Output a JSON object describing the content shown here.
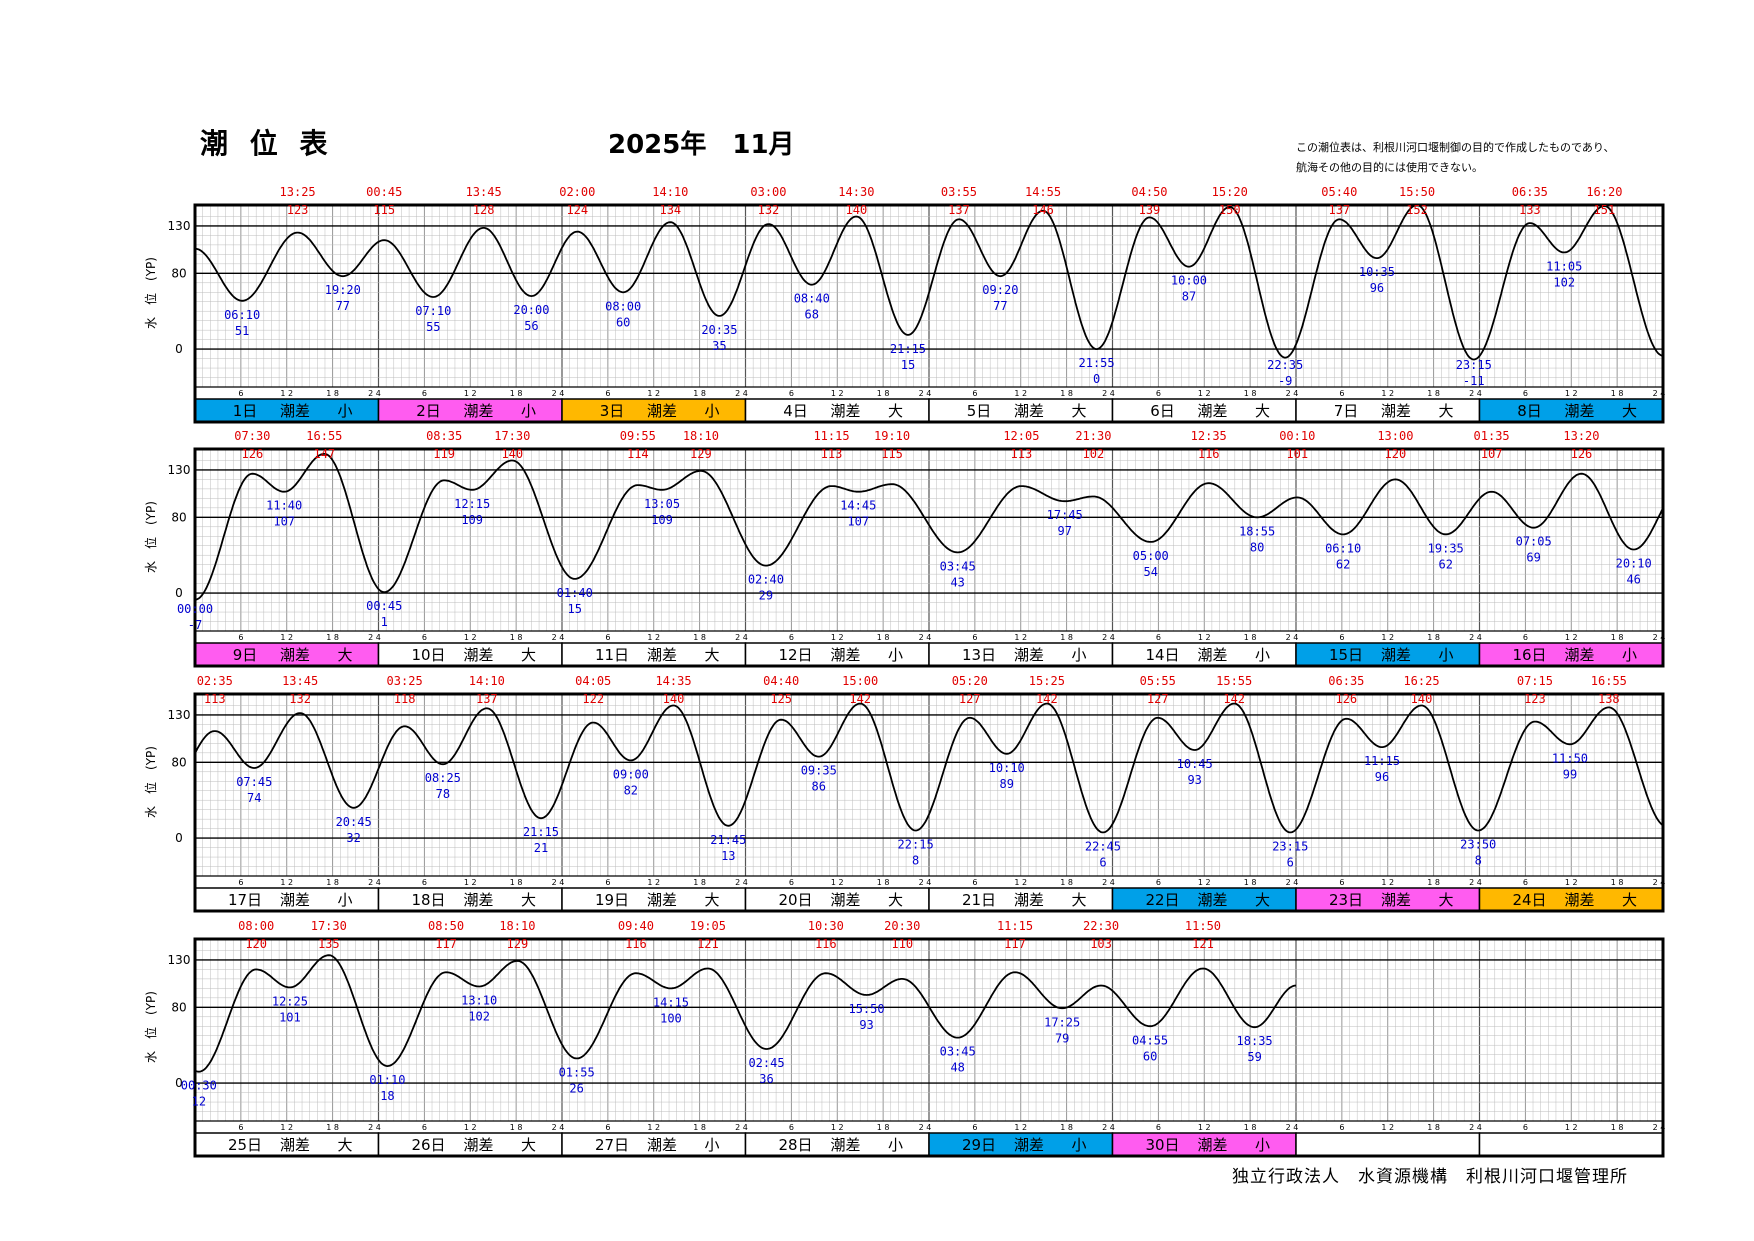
{
  "header": {
    "title": "潮 位 表",
    "month": "2025年　11月",
    "note_line1": "この潮位表は、利根川河口堰制御の目的で作成したものであり、",
    "note_line2": "航海その他の目的には使用できない。"
  },
  "footer": {
    "organization": "独立行政法人　水資源機構　利根川河口堰管理所"
  },
  "chart_data": {
    "type": "line",
    "title": "潮 位 表",
    "ylabel": "水　位　(YP)",
    "ylim": [
      -40,
      150
    ],
    "yticks": [
      0,
      80,
      130
    ],
    "hour_ticks": [
      6,
      12,
      18,
      24
    ],
    "colors": {
      "blue": "#00a0e8",
      "pink": "#ff5cf0",
      "orange": "#ffb800",
      "white": "#ffffff",
      "high": "#e00000",
      "low": "#0000d0"
    },
    "start_level": 106,
    "days": [
      {
        "label": "1日",
        "range": "潮差",
        "size": "小",
        "color": "blue",
        "events": [
          [
            "L",
            "06:10",
            51
          ],
          [
            "H",
            "13:25",
            123
          ],
          [
            "L",
            "19:20",
            77
          ]
        ]
      },
      {
        "label": "2日",
        "range": "潮差",
        "size": "小",
        "color": "pink",
        "events": [
          [
            "H",
            "00:45",
            115
          ],
          [
            "L",
            "07:10",
            55
          ],
          [
            "H",
            "13:45",
            128
          ],
          [
            "L",
            "20:00",
            56
          ]
        ]
      },
      {
        "label": "3日",
        "range": "潮差",
        "size": "小",
        "color": "orange",
        "events": [
          [
            "H",
            "02:00",
            124
          ],
          [
            "L",
            "08:00",
            60
          ],
          [
            "H",
            "14:10",
            134
          ],
          [
            "L",
            "20:35",
            35
          ]
        ]
      },
      {
        "label": "4日",
        "range": "潮差",
        "size": "大",
        "color": "white",
        "events": [
          [
            "H",
            "03:00",
            132
          ],
          [
            "L",
            "08:40",
            68
          ],
          [
            "H",
            "14:30",
            140
          ],
          [
            "L",
            "21:15",
            15
          ]
        ]
      },
      {
        "label": "5日",
        "range": "潮差",
        "size": "大",
        "color": "white",
        "events": [
          [
            "H",
            "03:55",
            137
          ],
          [
            "L",
            "09:20",
            77
          ],
          [
            "H",
            "14:55",
            146
          ],
          [
            "L",
            "21:55",
            0
          ]
        ]
      },
      {
        "label": "6日",
        "range": "潮差",
        "size": "大",
        "color": "white",
        "events": [
          [
            "H",
            "04:50",
            139
          ],
          [
            "L",
            "10:00",
            87
          ],
          [
            "H",
            "15:20",
            150
          ],
          [
            "L",
            "22:35",
            -9
          ]
        ]
      },
      {
        "label": "7日",
        "range": "潮差",
        "size": "大",
        "color": "white",
        "events": [
          [
            "H",
            "05:40",
            137
          ],
          [
            "L",
            "10:35",
            96
          ],
          [
            "H",
            "15:50",
            152
          ],
          [
            "L",
            "23:15",
            -11
          ]
        ]
      },
      {
        "label": "8日",
        "range": "潮差",
        "size": "大",
        "color": "blue",
        "events": [
          [
            "H",
            "06:35",
            133
          ],
          [
            "L",
            "11:05",
            102
          ],
          [
            "H",
            "16:20",
            151
          ]
        ]
      },
      {
        "label": "9日",
        "range": "潮差",
        "size": "大",
        "color": "pink",
        "events": [
          [
            "L",
            "00:00",
            -7
          ],
          [
            "H",
            "07:30",
            126
          ],
          [
            "L",
            "11:40",
            107
          ],
          [
            "H",
            "16:55",
            147
          ]
        ]
      },
      {
        "label": "10日",
        "range": "潮差",
        "size": "大",
        "color": "white",
        "events": [
          [
            "L",
            "00:45",
            1
          ],
          [
            "H",
            "08:35",
            119
          ],
          [
            "L",
            "12:15",
            109
          ],
          [
            "H",
            "17:30",
            140
          ]
        ]
      },
      {
        "label": "11日",
        "range": "潮差",
        "size": "大",
        "color": "white",
        "events": [
          [
            "L",
            "01:40",
            15
          ],
          [
            "H",
            "09:55",
            114
          ],
          [
            "L",
            "13:05",
            109
          ],
          [
            "H",
            "18:10",
            129
          ]
        ]
      },
      {
        "label": "12日",
        "range": "潮差",
        "size": "小",
        "color": "white",
        "events": [
          [
            "L",
            "02:40",
            29
          ],
          [
            "H",
            "11:15",
            113
          ],
          [
            "L",
            "14:45",
            107
          ],
          [
            "H",
            "19:10",
            115
          ]
        ]
      },
      {
        "label": "13日",
        "range": "潮差",
        "size": "小",
        "color": "white",
        "events": [
          [
            "L",
            "03:45",
            43
          ],
          [
            "H",
            "12:05",
            113
          ],
          [
            "L",
            "17:45",
            97
          ],
          [
            "H",
            "21:30",
            102
          ]
        ]
      },
      {
        "label": "14日",
        "range": "潮差",
        "size": "小",
        "color": "white",
        "events": [
          [
            "L",
            "05:00",
            54
          ],
          [
            "H",
            "12:35",
            116
          ],
          [
            "L",
            "18:55",
            80
          ]
        ]
      },
      {
        "label": "15日",
        "range": "潮差",
        "size": "小",
        "color": "blue",
        "events": [
          [
            "H",
            "00:10",
            101
          ],
          [
            "L",
            "06:10",
            62
          ],
          [
            "H",
            "13:00",
            120
          ],
          [
            "L",
            "19:35",
            62
          ]
        ]
      },
      {
        "label": "16日",
        "range": "潮差",
        "size": "小",
        "color": "pink",
        "events": [
          [
            "H",
            "01:35",
            107
          ],
          [
            "L",
            "07:05",
            69
          ],
          [
            "H",
            "13:20",
            126
          ],
          [
            "L",
            "20:10",
            46
          ]
        ]
      },
      {
        "label": "17日",
        "range": "潮差",
        "size": "小",
        "color": "white",
        "events": [
          [
            "H",
            "02:35",
            113
          ],
          [
            "L",
            "07:45",
            74
          ],
          [
            "H",
            "13:45",
            132
          ],
          [
            "L",
            "20:45",
            32
          ]
        ]
      },
      {
        "label": "18日",
        "range": "潮差",
        "size": "大",
        "color": "white",
        "events": [
          [
            "H",
            "03:25",
            118
          ],
          [
            "L",
            "08:25",
            78
          ],
          [
            "H",
            "14:10",
            137
          ],
          [
            "L",
            "21:15",
            21
          ]
        ]
      },
      {
        "label": "19日",
        "range": "潮差",
        "size": "大",
        "color": "white",
        "events": [
          [
            "H",
            "04:05",
            122
          ],
          [
            "L",
            "09:00",
            82
          ],
          [
            "H",
            "14:35",
            140
          ],
          [
            "L",
            "21:45",
            13
          ]
        ]
      },
      {
        "label": "20日",
        "range": "潮差",
        "size": "大",
        "color": "white",
        "events": [
          [
            "H",
            "04:40",
            125
          ],
          [
            "L",
            "09:35",
            86
          ],
          [
            "H",
            "15:00",
            142
          ],
          [
            "L",
            "22:15",
            8
          ]
        ]
      },
      {
        "label": "21日",
        "range": "潮差",
        "size": "大",
        "color": "white",
        "events": [
          [
            "H",
            "05:20",
            127
          ],
          [
            "L",
            "10:10",
            89
          ],
          [
            "H",
            "15:25",
            142
          ],
          [
            "L",
            "22:45",
            6
          ]
        ]
      },
      {
        "label": "22日",
        "range": "潮差",
        "size": "大",
        "color": "blue",
        "events": [
          [
            "H",
            "05:55",
            127
          ],
          [
            "L",
            "10:45",
            93
          ],
          [
            "H",
            "15:55",
            142
          ],
          [
            "L",
            "23:15",
            6
          ]
        ]
      },
      {
        "label": "23日",
        "range": "潮差",
        "size": "大",
        "color": "pink",
        "events": [
          [
            "H",
            "06:35",
            126
          ],
          [
            "L",
            "11:15",
            96
          ],
          [
            "H",
            "16:25",
            140
          ],
          [
            "L",
            "23:50",
            8
          ]
        ]
      },
      {
        "label": "24日",
        "range": "潮差",
        "size": "大",
        "color": "orange",
        "events": [
          [
            "H",
            "07:15",
            123
          ],
          [
            "L",
            "11:50",
            99
          ],
          [
            "H",
            "16:55",
            138
          ]
        ]
      },
      {
        "label": "25日",
        "range": "潮差",
        "size": "大",
        "color": "white",
        "events": [
          [
            "L",
            "00:30",
            12
          ],
          [
            "H",
            "08:00",
            120
          ],
          [
            "L",
            "12:25",
            101
          ],
          [
            "H",
            "17:30",
            135
          ]
        ]
      },
      {
        "label": "26日",
        "range": "潮差",
        "size": "大",
        "color": "white",
        "events": [
          [
            "L",
            "01:10",
            18
          ],
          [
            "H",
            "08:50",
            117
          ],
          [
            "L",
            "13:10",
            102
          ],
          [
            "H",
            "18:10",
            129
          ]
        ]
      },
      {
        "label": "27日",
        "range": "潮差",
        "size": "小",
        "color": "white",
        "events": [
          [
            "L",
            "01:55",
            26
          ],
          [
            "H",
            "09:40",
            116
          ],
          [
            "L",
            "14:15",
            100
          ],
          [
            "H",
            "19:05",
            121
          ]
        ]
      },
      {
        "label": "28日",
        "range": "潮差",
        "size": "小",
        "color": "white",
        "events": [
          [
            "L",
            "02:45",
            36
          ],
          [
            "H",
            "10:30",
            116
          ],
          [
            "L",
            "15:50",
            93
          ],
          [
            "H",
            "20:30",
            110
          ]
        ]
      },
      {
        "label": "29日",
        "range": "潮差",
        "size": "小",
        "color": "blue",
        "events": [
          [
            "L",
            "03:45",
            48
          ],
          [
            "H",
            "11:15",
            117
          ],
          [
            "L",
            "17:25",
            79
          ],
          [
            "H",
            "22:30",
            103
          ]
        ]
      },
      {
        "label": "30日",
        "range": "潮差",
        "size": "小",
        "color": "pink",
        "events": [
          [
            "L",
            "04:55",
            60
          ],
          [
            "H",
            "11:50",
            121
          ],
          [
            "L",
            "18:35",
            59
          ]
        ]
      }
    ],
    "end_level": 103
  }
}
